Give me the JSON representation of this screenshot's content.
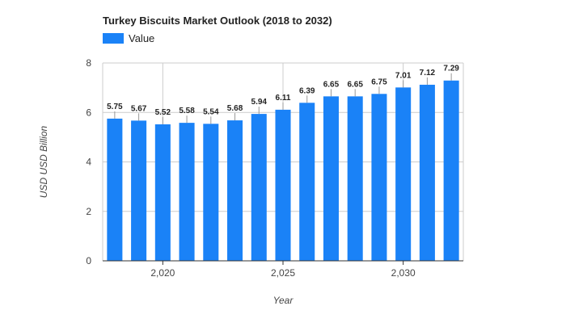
{
  "chart_data": {
    "type": "bar",
    "title": "Turkey Biscuits Market Outlook (2018 to 2032)",
    "xlabel": "Year",
    "ylabel": "USD USD Billion",
    "legend": "top-left",
    "grid": true,
    "ylim": [
      0,
      8
    ],
    "yticks": [
      0,
      2,
      4,
      6,
      8
    ],
    "xticks": [
      "2,020",
      "2,025",
      "2,030"
    ],
    "series": [
      {
        "name": "Value",
        "color": "#1a82f7",
        "x": [
          2018,
          2019,
          2020,
          2021,
          2022,
          2023,
          2024,
          2025,
          2026,
          2027,
          2028,
          2029,
          2030,
          2031,
          2032
        ],
        "values": [
          5.75,
          5.67,
          5.52,
          5.58,
          5.54,
          5.68,
          5.94,
          6.11,
          6.39,
          6.65,
          6.65,
          6.75,
          7.01,
          7.12,
          7.29
        ]
      }
    ]
  }
}
